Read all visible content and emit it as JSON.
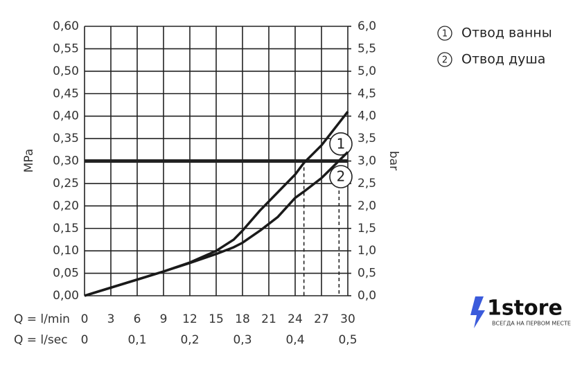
{
  "chart_data": {
    "type": "line",
    "x": [
      0,
      3,
      6,
      9,
      12,
      15,
      17,
      18,
      20,
      22,
      24,
      25,
      27,
      30
    ],
    "series": [
      {
        "name": "Отвод ванны",
        "marker": "1",
        "color": "#1a1a1a",
        "values": [
          0,
          0.018,
          0.036,
          0.054,
          0.074,
          0.1,
          0.125,
          0.145,
          0.19,
          0.23,
          0.27,
          0.296,
          0.335,
          0.41
        ]
      },
      {
        "name": "Отвод душа",
        "marker": "2",
        "color": "#1a1a1a",
        "values": [
          0,
          0.018,
          0.036,
          0.054,
          0.073,
          0.093,
          0.108,
          0.118,
          0.145,
          0.175,
          0.218,
          0.232,
          0.262,
          0.32
        ]
      }
    ],
    "xlabel": "Q = l/min",
    "x2label": "Q = l/sec",
    "ylabel": "MPa",
    "y2label": "bar",
    "xlim": [
      0,
      30
    ],
    "xticks": [
      0,
      3,
      6,
      9,
      12,
      15,
      18,
      21,
      24,
      27,
      30
    ],
    "x2lim": [
      0,
      0.5
    ],
    "x2ticks": [
      0,
      {
        "value": 0.1,
        "label": "0,1"
      },
      {
        "value": 0.2,
        "label": "0,2"
      },
      {
        "value": 0.3,
        "label": "0,3"
      },
      {
        "value": 0.4,
        "label": "0,4"
      },
      {
        "value": 0.5,
        "label": "0,5"
      }
    ],
    "ylim": [
      0,
      0.6
    ],
    "yticks": [
      {
        "value": 0,
        "label": "0,00"
      },
      {
        "value": 0.05,
        "label": "0,05"
      },
      {
        "value": 0.1,
        "label": "0,10"
      },
      {
        "value": 0.15,
        "label": "0,15"
      },
      {
        "value": 0.2,
        "label": "0,20"
      },
      {
        "value": 0.25,
        "label": "0,25"
      },
      {
        "value": 0.3,
        "label": "0,30"
      },
      {
        "value": 0.35,
        "label": "0,35"
      },
      {
        "value": 0.4,
        "label": "0,40"
      },
      {
        "value": 0.45,
        "label": "0,45"
      },
      {
        "value": 0.5,
        "label": "0,50"
      },
      {
        "value": 0.55,
        "label": "0,55"
      },
      {
        "value": 0.6,
        "label": "0,60"
      }
    ],
    "y2lim": [
      0,
      6
    ],
    "y2ticks": [
      {
        "value": 0,
        "label": "0,0"
      },
      {
        "value": 0.5,
        "label": "0,5"
      },
      {
        "value": 1,
        "label": "1,0"
      },
      {
        "value": 1.5,
        "label": "1,5"
      },
      {
        "value": 2,
        "label": "2,0"
      },
      {
        "value": 2.5,
        "label": "2,5"
      },
      {
        "value": 3,
        "label": "3,0"
      },
      {
        "value": 3.5,
        "label": "3,5"
      },
      {
        "value": 4,
        "label": "4,0"
      },
      {
        "value": 4.5,
        "label": "4,5"
      },
      {
        "value": 5,
        "label": "5,0"
      },
      {
        "value": 5.5,
        "label": "5,5"
      },
      {
        "value": 6,
        "label": "6,0"
      }
    ],
    "hline": 0.3,
    "drops": [
      {
        "x": 25,
        "y": 0.3
      },
      {
        "x": 29,
        "y": 0.29
      }
    ],
    "grid": true
  },
  "logo": {
    "name": "1store",
    "tagline": "ВСЕГДА НА ПЕРВОМ МЕСТЕ"
  }
}
